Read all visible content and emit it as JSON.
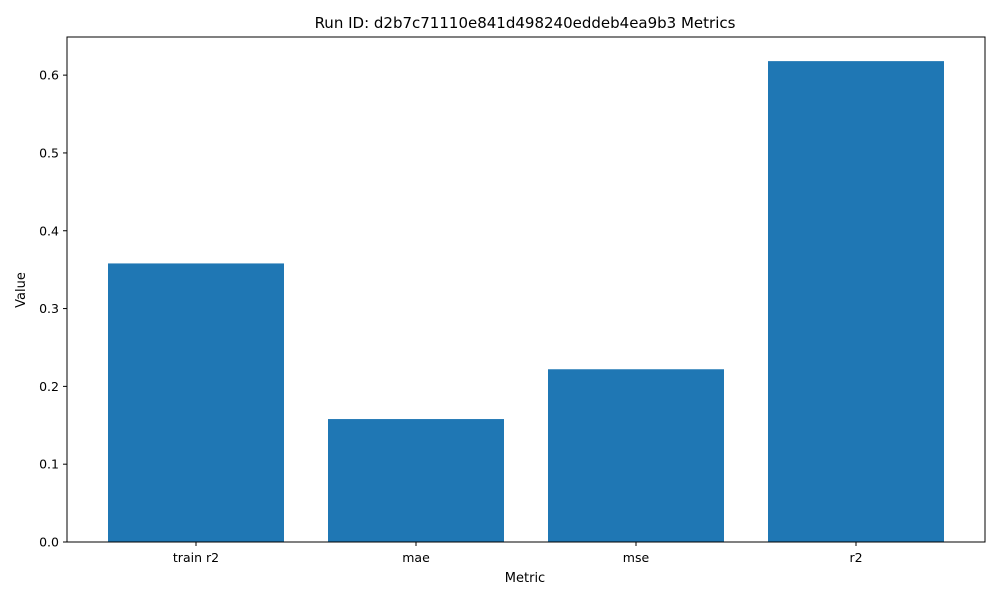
{
  "chart_data": {
    "type": "bar",
    "title": "Run ID: d2b7c71110e841d498240eddeb4ea9b3 Metrics",
    "xlabel": "Metric",
    "ylabel": "Value",
    "categories": [
      "train r2",
      "mae",
      "mse",
      "r2"
    ],
    "values": [
      0.358,
      0.158,
      0.222,
      0.618
    ],
    "ylim": [
      0,
      0.649
    ],
    "yticks": [
      "0.0",
      "0.1",
      "0.2",
      "0.3",
      "0.4",
      "0.5",
      "0.6"
    ],
    "bar_color": "#1f77b4",
    "grid": false,
    "legend": "none"
  }
}
